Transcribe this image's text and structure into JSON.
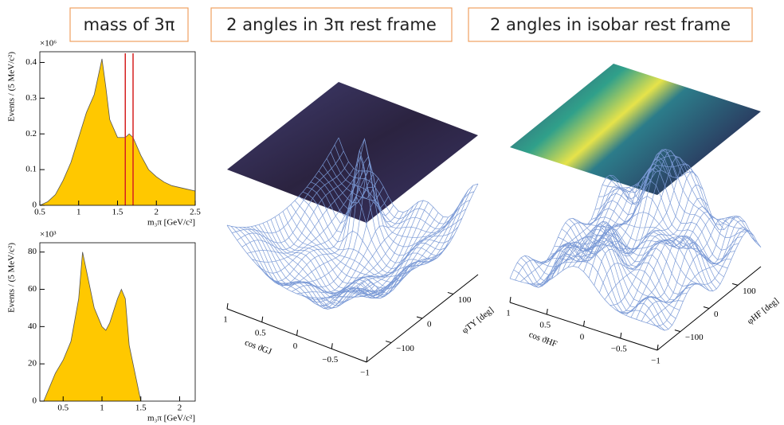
{
  "chart_data": [
    {
      "type": "area",
      "box_label": "mass of 3π",
      "ylabel": "Events / (5 MeV/c²)",
      "xlabel": "m₃π [GeV/c²]",
      "y_multiplier": "×10⁶",
      "color": "#ffc800",
      "line_color": "#555555",
      "x": [
        0.5,
        0.6,
        0.7,
        0.8,
        0.9,
        1.0,
        1.1,
        1.2,
        1.25,
        1.3,
        1.35,
        1.4,
        1.5,
        1.6,
        1.65,
        1.7,
        1.8,
        1.9,
        2.0,
        2.1,
        2.2,
        2.3,
        2.4,
        2.5
      ],
      "values": [
        0,
        0.01,
        0.03,
        0.07,
        0.12,
        0.19,
        0.26,
        0.31,
        0.36,
        0.41,
        0.33,
        0.24,
        0.19,
        0.19,
        0.2,
        0.19,
        0.14,
        0.1,
        0.08,
        0.065,
        0.055,
        0.05,
        0.045,
        0.04
      ],
      "markers": [
        1.6,
        1.7
      ],
      "marker_color": "#d62020",
      "xlim": [
        0.5,
        2.5
      ],
      "xticks": [
        0.5,
        1,
        1.5,
        2,
        2.5
      ],
      "ylim": [
        0,
        0.43
      ],
      "yticks": [
        0,
        0.1,
        0.2,
        0.3,
        0.4
      ]
    },
    {
      "type": "area",
      "ylabel": "Events / (5 MeV/c²)",
      "xlabel": "m₃π [GeV/c²]",
      "y_multiplier": "×10³",
      "color": "#ffc800",
      "line_color": "#555555",
      "x": [
        0.25,
        0.3,
        0.4,
        0.5,
        0.6,
        0.7,
        0.75,
        0.8,
        0.9,
        1.0,
        1.05,
        1.1,
        1.2,
        1.25,
        1.3,
        1.35,
        1.45,
        1.5
      ],
      "values": [
        0,
        5,
        15,
        22,
        32,
        55,
        80,
        70,
        50,
        40,
        38,
        42,
        55,
        60,
        55,
        30,
        10,
        0
      ],
      "xlim": [
        0.2,
        2.2
      ],
      "xticks": [
        0.5,
        1,
        1.5,
        2
      ],
      "ylim": [
        0,
        85
      ],
      "yticks": [
        0,
        20,
        40,
        60,
        80
      ]
    },
    {
      "type": "surface3d",
      "box_label": "2 angles in 3π rest frame",
      "xlabel": "cos ϑGJ",
      "ylabel": "φTY [deg]",
      "xlim": [
        1,
        -1
      ],
      "xticks": [
        1,
        0.5,
        0,
        {
          "value": -0.5,
          "label": "−0.5"
        },
        {
          "value": -1,
          "label": "−1"
        }
      ],
      "ylim": [
        -180,
        180
      ],
      "yticks": [
        {
          "value": -100,
          "label": "−100"
        },
        0,
        100
      ],
      "color": "#7b9ad6"
    },
    {
      "type": "surface3d",
      "box_label": "2 angles in isobar rest frame",
      "xlabel": "cos ϑHF",
      "ylabel": "φHF [deg]",
      "xlim": [
        1,
        -1
      ],
      "xticks": [
        1,
        0.5,
        0,
        {
          "value": -0.5,
          "label": "−0.5"
        },
        {
          "value": -1,
          "label": "−1"
        }
      ],
      "ylim": [
        -180,
        180
      ],
      "yticks": [
        {
          "value": -100,
          "label": "−100"
        },
        0,
        100
      ],
      "color": "#7b9ad6"
    }
  ]
}
